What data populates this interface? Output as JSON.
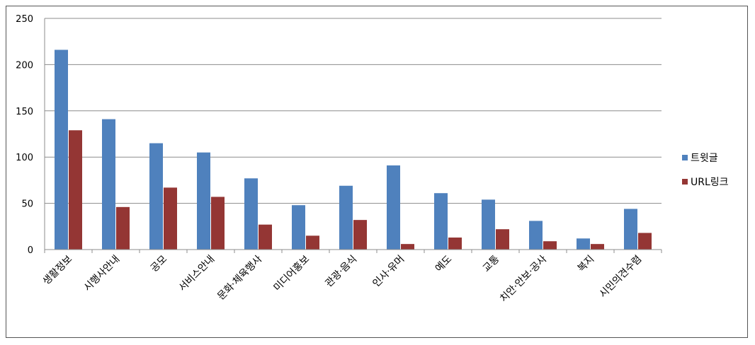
{
  "chart_data": {
    "type": "bar",
    "categories": [
      "생활정보",
      "시행사안내",
      "공모",
      "서비스안내",
      "문화·체육행사",
      "미디어홍보",
      "관광·음식",
      "인사·유머",
      "예도",
      "교통",
      "치안·안보·공사",
      "복지",
      "시민의견수렴"
    ],
    "series": [
      {
        "name": "트윗글",
        "color": "#4F81BD",
        "values": [
          216,
          141,
          115,
          105,
          77,
          48,
          69,
          91,
          61,
          54,
          31,
          12,
          44
        ]
      },
      {
        "name": "URL링크",
        "color": "#943634",
        "values": [
          129,
          46,
          67,
          57,
          27,
          15,
          32,
          6,
          13,
          22,
          9,
          6,
          18
        ]
      }
    ],
    "ylim": [
      0,
      250
    ],
    "yticks": [
      "0",
      "50",
      "100",
      "150",
      "200",
      "250"
    ],
    "grid": true,
    "legend_position": "right"
  }
}
